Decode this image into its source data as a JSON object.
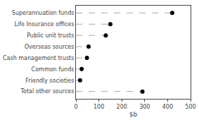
{
  "chart_data": {
    "type": "dot",
    "orientation": "horizontal",
    "categories": [
      "Superannuation funds",
      "Life Insurance offices",
      "Public unit trusts",
      "Overseas sources",
      "Cash management trusts",
      "Common funds",
      "Friendly societies",
      "Total other sources"
    ],
    "values": [
      420,
      150,
      130,
      55,
      48,
      25,
      18,
      290
    ],
    "color": "#000000",
    "line_style": "dashed",
    "xlabel": "$b",
    "xlim": [
      0,
      500
    ],
    "xticks": [
      0,
      100,
      200,
      300,
      400,
      500
    ],
    "grid": false
  }
}
